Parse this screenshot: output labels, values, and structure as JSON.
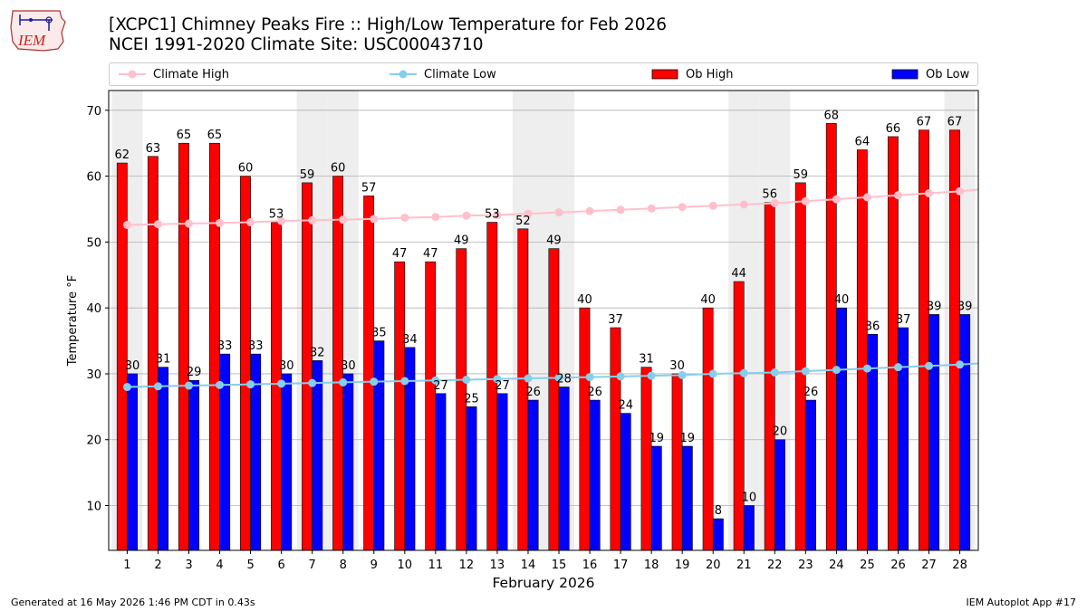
{
  "header": {
    "title_line1": "[XCPC1] Chimney Peaks Fire :: High/Low Temperature for Feb 2026",
    "title_line2": "NCEI 1991-2020 Climate Site: USC00043710",
    "logo_text": "IEM"
  },
  "legend": {
    "climate_high": "Climate High",
    "climate_low": "Climate Low",
    "ob_high": "Ob High",
    "ob_low": "Ob Low"
  },
  "footer": {
    "generated": "Generated at 16 May 2026 1:46 PM CDT in 0.43s",
    "app": "IEM Autoplot App #17"
  },
  "colors": {
    "ob_high": "#ff0000",
    "ob_low": "#0000ff",
    "climate_high": "#ffc0cb",
    "climate_low": "#87ceeb",
    "weekend_shade": "#eeeeee",
    "grid": "#b0b0b0"
  },
  "chart_data": {
    "type": "bar",
    "xlabel": "February 2026",
    "ylabel": "Temperature °F",
    "ylim": [
      3.2,
      73
    ],
    "yticks": [
      10,
      20,
      30,
      40,
      50,
      60,
      70
    ],
    "grid": "horizontal",
    "legend_position": "top",
    "categories": [
      "1",
      "2",
      "3",
      "4",
      "5",
      "6",
      "7",
      "8",
      "9",
      "10",
      "11",
      "12",
      "13",
      "14",
      "15",
      "16",
      "17",
      "18",
      "19",
      "20",
      "21",
      "22",
      "23",
      "24",
      "25",
      "26",
      "27",
      "28"
    ],
    "shaded_days": [
      1,
      7,
      8,
      14,
      15,
      21,
      22,
      28
    ],
    "series": [
      {
        "name": "Ob High",
        "kind": "bar",
        "values": [
          62,
          63,
          65,
          65,
          60,
          53,
          59,
          60,
          57,
          47,
          47,
          49,
          53,
          52,
          49,
          40,
          37,
          31,
          30,
          40,
          44,
          56,
          59,
          68,
          64,
          66,
          67,
          67
        ]
      },
      {
        "name": "Ob Low",
        "kind": "bar",
        "values": [
          30,
          31,
          29,
          33,
          33,
          30,
          32,
          30,
          35,
          34,
          27,
          25,
          27,
          26,
          28,
          26,
          24,
          19,
          19,
          8,
          10,
          20,
          26,
          40,
          36,
          37,
          39,
          39
        ]
      },
      {
        "name": "Climate High",
        "kind": "line",
        "values": [
          52.6,
          52.7,
          52.8,
          52.9,
          53.0,
          53.2,
          53.3,
          53.4,
          53.5,
          53.7,
          53.8,
          54.0,
          54.1,
          54.3,
          54.5,
          54.7,
          54.9,
          55.1,
          55.3,
          55.5,
          55.7,
          55.9,
          56.2,
          56.5,
          56.8,
          57.1,
          57.4,
          57.7
        ]
      },
      {
        "name": "Climate Low",
        "kind": "line",
        "values": [
          28.0,
          28.1,
          28.2,
          28.3,
          28.4,
          28.5,
          28.6,
          28.7,
          28.8,
          28.9,
          29.0,
          29.1,
          29.2,
          29.3,
          29.4,
          29.5,
          29.6,
          29.7,
          29.8,
          30.0,
          30.1,
          30.2,
          30.4,
          30.6,
          30.8,
          31.0,
          31.2,
          31.4
        ]
      }
    ]
  }
}
